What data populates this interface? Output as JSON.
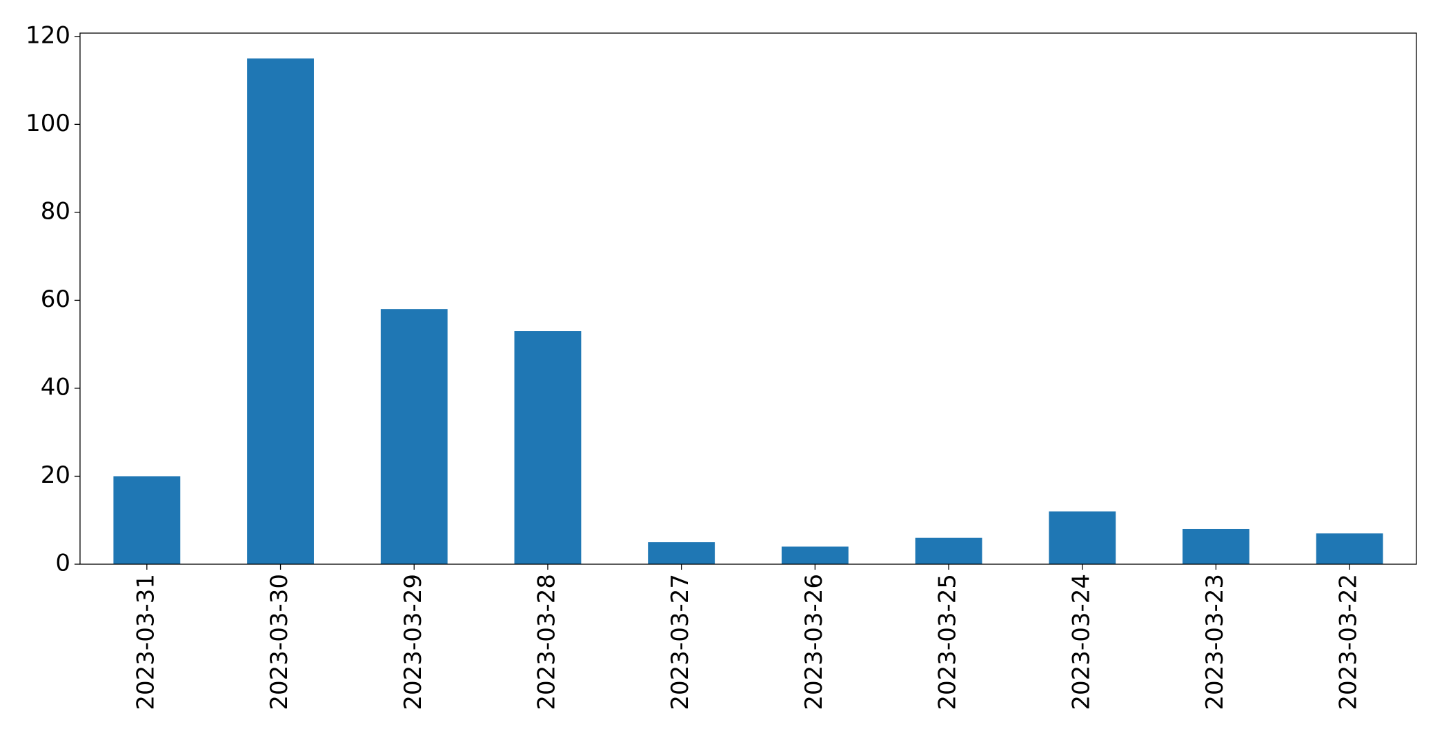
{
  "chart_data": {
    "type": "bar",
    "categories": [
      "2023-03-31",
      "2023-03-30",
      "2023-03-29",
      "2023-03-28",
      "2023-03-27",
      "2023-03-26",
      "2023-03-25",
      "2023-03-24",
      "2023-03-23",
      "2023-03-22"
    ],
    "values": [
      20,
      115,
      58,
      53,
      5,
      4,
      6,
      12,
      8,
      7
    ],
    "color": "#1f77b4",
    "ylim": [
      0,
      120.75
    ],
    "yticks": [
      0,
      20,
      40,
      60,
      80,
      100,
      120
    ],
    "grid": false
  }
}
